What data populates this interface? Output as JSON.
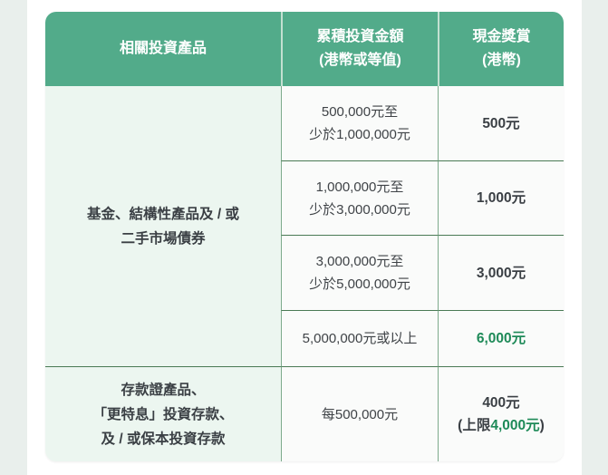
{
  "colors": {
    "page_background": "#e9efec",
    "card_background": "#ffffff",
    "header_bg": "#52ab8a",
    "header_text": "#ffffff",
    "product_column_bg": "#ecf6f0",
    "cell_bg": "#fafbfa",
    "divider_dark_green": "#4a7a55",
    "divider_mid_green": "#7daa8c",
    "header_divider": "#c3e0d1",
    "text_dark": "#3a3f44",
    "accent_green": "#1e8a58"
  },
  "table": {
    "header": {
      "product_column": "相關投資產品",
      "amount_column_line1": "累積投資金額",
      "amount_column_line2": "(港幣或等值)",
      "reward_column_line1": "現金獎賞",
      "reward_column_line2": "(港幣)"
    },
    "section1": {
      "product_line1": "基金、結構性產品及 / 或",
      "product_line2": "二手市場債券",
      "rows": [
        {
          "amount_line1": "500,000元至",
          "amount_line2": "少於1,000,000元",
          "reward": "500元"
        },
        {
          "amount_line1": "1,000,000元至",
          "amount_line2": "少於3,000,000元",
          "reward": "1,000元"
        },
        {
          "amount_line1": "3,000,000元至",
          "amount_line2": "少於5,000,000元",
          "reward": "3,000元"
        },
        {
          "amount_line1": "5,000,000元或以上",
          "reward": "6,000元"
        }
      ]
    },
    "section2": {
      "product_line1": "存款證產品、",
      "product_line2": "「更特息」投資存款、",
      "product_line3": "及 / 或保本投資存款",
      "amount": "每500,000元",
      "reward_line1": "400元",
      "reward_cap_prefix": "(上限",
      "reward_cap_value": "4,000元",
      "reward_cap_suffix": ")"
    }
  }
}
